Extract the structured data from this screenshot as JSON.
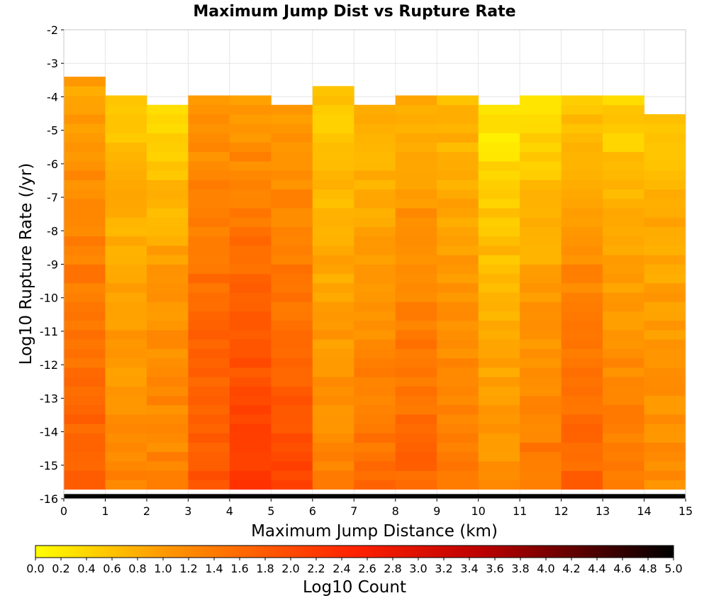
{
  "chart_data": {
    "type": "heatmap",
    "title": "Maximum Jump Dist vs Rupture Rate",
    "xlabel": "Maximum Jump Distance (km)",
    "ylabel": "Log10 Rupture Rate (/yr)",
    "xlim": [
      0,
      15
    ],
    "ylim": [
      -16,
      -2
    ],
    "x_bin_width": 1,
    "y_bin_width": 0.28,
    "x_ticks": [
      "0",
      "1",
      "2",
      "3",
      "4",
      "5",
      "6",
      "7",
      "8",
      "9",
      "10",
      "11",
      "12",
      "13",
      "14",
      "15"
    ],
    "y_ticks": [
      "-2",
      "-3",
      "-4",
      "-5",
      "-6",
      "-7",
      "-8",
      "-9",
      "-10",
      "-11",
      "-12",
      "-13",
      "-14",
      "-15",
      "-16"
    ],
    "grid": true,
    "colorbar": {
      "label": "Log10 Count",
      "min": 0.0,
      "max": 5.0,
      "ticks": [
        "0.0",
        "0.2",
        "0.4",
        "0.6",
        "0.8",
        "1.0",
        "1.2",
        "1.4",
        "1.6",
        "1.8",
        "2.0",
        "2.2",
        "2.4",
        "2.6",
        "2.8",
        "3.0",
        "3.2",
        "3.4",
        "3.6",
        "3.8",
        "4.0",
        "4.2",
        "4.4",
        "4.6",
        "4.8",
        "5.0"
      ],
      "colors": [
        "#ffff00",
        "#ff9a00",
        "#ff2200",
        "#bb0000",
        "#000000"
      ]
    },
    "bottom_row_value": 5.0,
    "column_tops": [
      -3.3,
      -3.86,
      -4.14,
      -3.86,
      -3.86,
      -4.14,
      -3.58,
      -4.14,
      -3.86,
      -3.86,
      -4.14,
      -3.86,
      -3.86,
      -3.86,
      -4.42
    ],
    "column_profiles": [
      {
        "top": 0.9,
        "mid": 1.4,
        "low": 1.8
      },
      {
        "top": 0.6,
        "mid": 0.9,
        "low": 1.3
      },
      {
        "top": 0.4,
        "mid": 1.1,
        "low": 1.3
      },
      {
        "top": 1.0,
        "mid": 1.6,
        "low": 1.9
      },
      {
        "top": 1.0,
        "mid": 1.7,
        "low": 2.2
      },
      {
        "top": 1.0,
        "mid": 1.5,
        "low": 2.1
      },
      {
        "top": 0.5,
        "mid": 0.9,
        "low": 1.3
      },
      {
        "top": 0.7,
        "mid": 1.1,
        "low": 1.6
      },
      {
        "top": 0.8,
        "mid": 1.3,
        "low": 1.7
      },
      {
        "top": 0.7,
        "mid": 1.1,
        "low": 1.4
      },
      {
        "top": 0.2,
        "mid": 0.8,
        "low": 1.1
      },
      {
        "top": 0.3,
        "mid": 1.0,
        "low": 1.5
      },
      {
        "top": 0.6,
        "mid": 1.3,
        "low": 1.7
      },
      {
        "top": 0.4,
        "mid": 1.0,
        "low": 1.5
      },
      {
        "top": 0.6,
        "mid": 1.0,
        "low": 1.2
      }
    ]
  }
}
